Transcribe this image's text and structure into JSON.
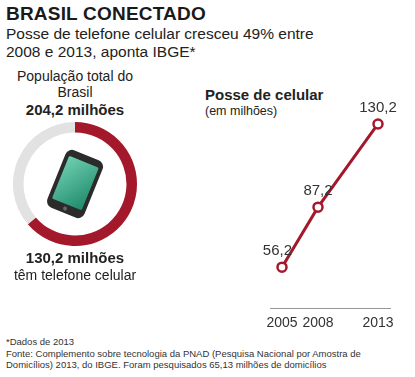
{
  "header": {
    "title": "BRASIL CONECTADO",
    "subtitle": "Posse de telefone celular cresceu 49% entre 2008 e 2013, aponta IBGE*"
  },
  "chart_data": [
    {
      "type": "doughnut",
      "title": "População total do Brasil",
      "total": 204.2,
      "total_label": "204,2 milhões",
      "categories": [
        "têm telefone celular"
      ],
      "values": [
        130.2
      ],
      "value_labels": [
        "130,2 milhões"
      ],
      "colors": [
        "#a3192b"
      ]
    },
    {
      "type": "line",
      "title": "Posse de celular",
      "subtitle": "(em milhões)",
      "x": [
        2005,
        2008,
        2013
      ],
      "values": [
        56.2,
        87.2,
        130.2
      ],
      "value_labels": [
        "56,2",
        "87,2",
        "130,2"
      ],
      "color": "#a3192b",
      "marker": "circle",
      "xlim": [
        2004,
        2014
      ],
      "xticks": [
        2005,
        2008,
        2013
      ],
      "ylim": [
        35,
        140
      ],
      "tick_labels": "x",
      "grid": false,
      "data_labels": true
    }
  ],
  "notes": [
    "*Dados de 2013",
    "Fonte: Complemento sobre tecnologia da PNAD (Pesquisa Nacional por Amostra de Domicílios) 2013, do IBGE. Foram pesquisados 65,13 milhões de domicílios"
  ]
}
